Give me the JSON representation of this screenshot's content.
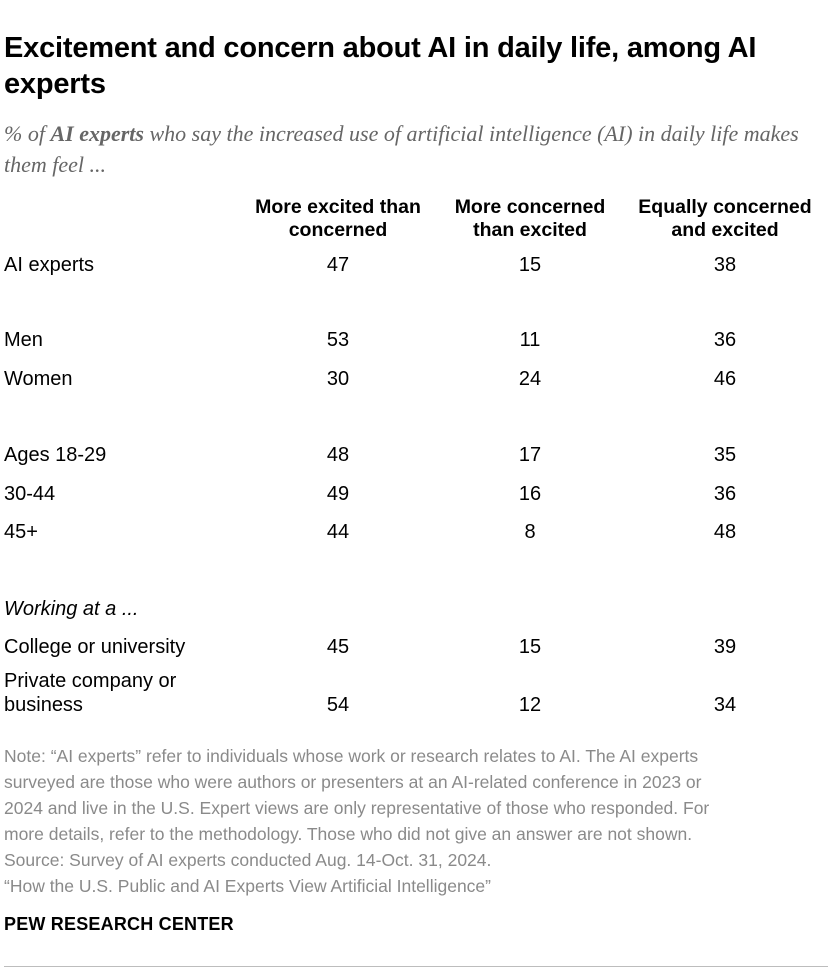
{
  "title": "Excitement and concern about AI in daily life, among AI experts",
  "subtitle": {
    "prefix": "% of ",
    "bold": "AI experts",
    "suffix": " who say the increased use of artificial intelligence (AI) in daily life makes them feel ..."
  },
  "chart_data": {
    "type": "table",
    "columns": [
      [
        "More excited than",
        "concerned"
      ],
      [
        "More concerned",
        "than excited"
      ],
      [
        "Equally concerned",
        "and excited"
      ]
    ],
    "rows": [
      {
        "label": "AI experts",
        "values": [
          47,
          15,
          38
        ]
      },
      {
        "label": "Men",
        "values": [
          53,
          11,
          36
        ]
      },
      {
        "label": "Women",
        "values": [
          30,
          24,
          46
        ]
      },
      {
        "label": "Ages 18-29",
        "values": [
          48,
          17,
          35
        ]
      },
      {
        "label": "30-44",
        "values": [
          49,
          16,
          36
        ]
      },
      {
        "label": "45+",
        "values": [
          44,
          8,
          48
        ]
      },
      {
        "label": "College or university",
        "values": [
          45,
          15,
          39
        ]
      },
      {
        "label": "Private company or business",
        "label_lines": [
          "Private company or",
          "business"
        ],
        "values": [
          54,
          12,
          34
        ]
      }
    ],
    "group_header": "Working at a ..."
  },
  "note": [
    "Note: “AI experts” refer to individuals whose work or research relates to AI. The AI experts",
    "surveyed are those who were authors or presenters at an AI-related conference in 2023 or",
    "2024 and live in the U.S. Expert views are only representative of those who responded. For",
    "more details, refer to the methodology. Those who did not give an answer are not shown.",
    "Source: Survey of AI experts conducted Aug. 14-Oct. 31, 2024.",
    "“How the U.S. Public and AI Experts View Artificial Intelligence”"
  ],
  "brand": "PEW RESEARCH CENTER"
}
